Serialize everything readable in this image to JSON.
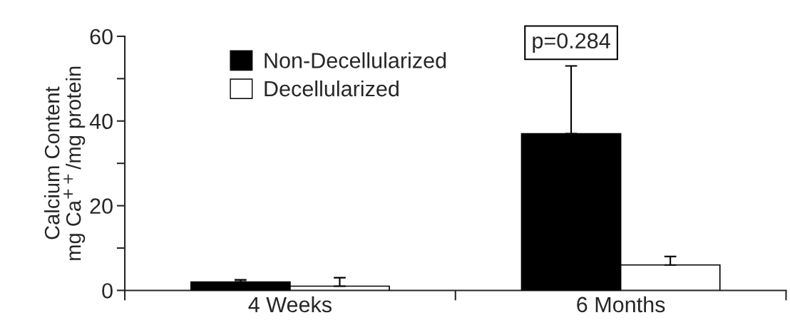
{
  "chart_data": {
    "type": "bar",
    "ylabel": "Calcium Content\nmg Ca$^{++}$/mg protein",
    "categories": [
      "4 Weeks",
      "6 Months"
    ],
    "series": [
      {
        "name": "Non-Decellularized",
        "color": "#000000",
        "values": [
          2,
          37
        ],
        "errors": [
          [
            2,
            2.5
          ],
          [
            37,
            53
          ]
        ]
      },
      {
        "name": "Decellularized",
        "color": "#ffffff",
        "values": [
          1,
          6
        ],
        "errors": [
          [
            1,
            3
          ],
          [
            6,
            8
          ]
        ]
      }
    ],
    "ylim": [
      0,
      60
    ],
    "yticks": [
      0,
      {
        "value": 10,
        "label": null
      },
      20,
      {
        "value": 30,
        "label": null
      },
      40,
      {
        "value": 50,
        "label": null
      },
      60
    ],
    "annotations": [
      "p=0.284"
    ],
    "legend": "top left",
    "grid": false
  }
}
